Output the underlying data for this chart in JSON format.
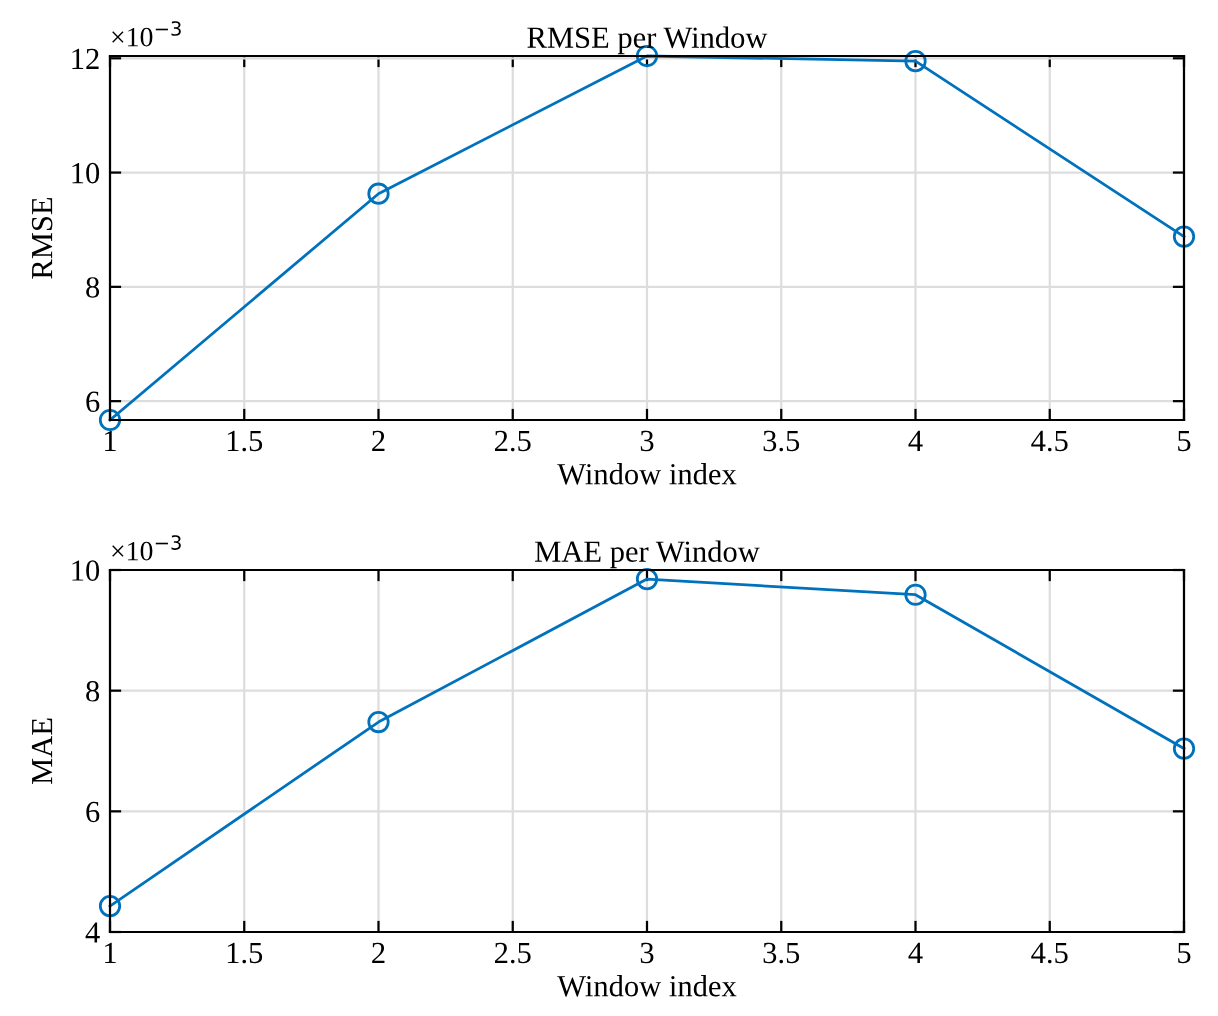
{
  "chart_data": [
    {
      "type": "line",
      "title": "RMSE per Window",
      "xlabel": "Window index",
      "ylabel": "RMSE",
      "annotations": [
        "×10$^{−3}$"
      ],
      "x": [
        1,
        2,
        3,
        4,
        5
      ],
      "series": [
        {
          "color": "#0072bd",
          "values": [
            5.67,
            9.63,
            12.04,
            11.95,
            8.88
          ]
        }
      ],
      "xlim": [
        1,
        5
      ],
      "xticks": [
        1,
        1.5,
        2,
        2.5,
        3,
        3.5,
        4,
        4.5,
        5
      ],
      "ylim": [
        5.67,
        12.04
      ],
      "yticks": [
        6,
        8,
        10,
        12
      ],
      "grid": true,
      "marker": "circle",
      "line_style": "solid"
    },
    {
      "type": "line",
      "title": "MAE per Window",
      "xlabel": "Window index",
      "ylabel": "MAE",
      "annotations": [
        "×10$^{−3}$"
      ],
      "x": [
        1,
        2,
        3,
        4,
        5
      ],
      "series": [
        {
          "color": "#0072bd",
          "values": [
            4.43,
            7.48,
            9.85,
            9.59,
            7.04
          ]
        }
      ],
      "xlim": [
        1,
        5
      ],
      "xticks": [
        1,
        1.5,
        2,
        2.5,
        3,
        3.5,
        4,
        4.5,
        5
      ],
      "ylim": [
        4,
        10
      ],
      "yticks": [
        4,
        6,
        8,
        10
      ],
      "grid": true,
      "marker": "circle",
      "line_style": "solid"
    }
  ]
}
